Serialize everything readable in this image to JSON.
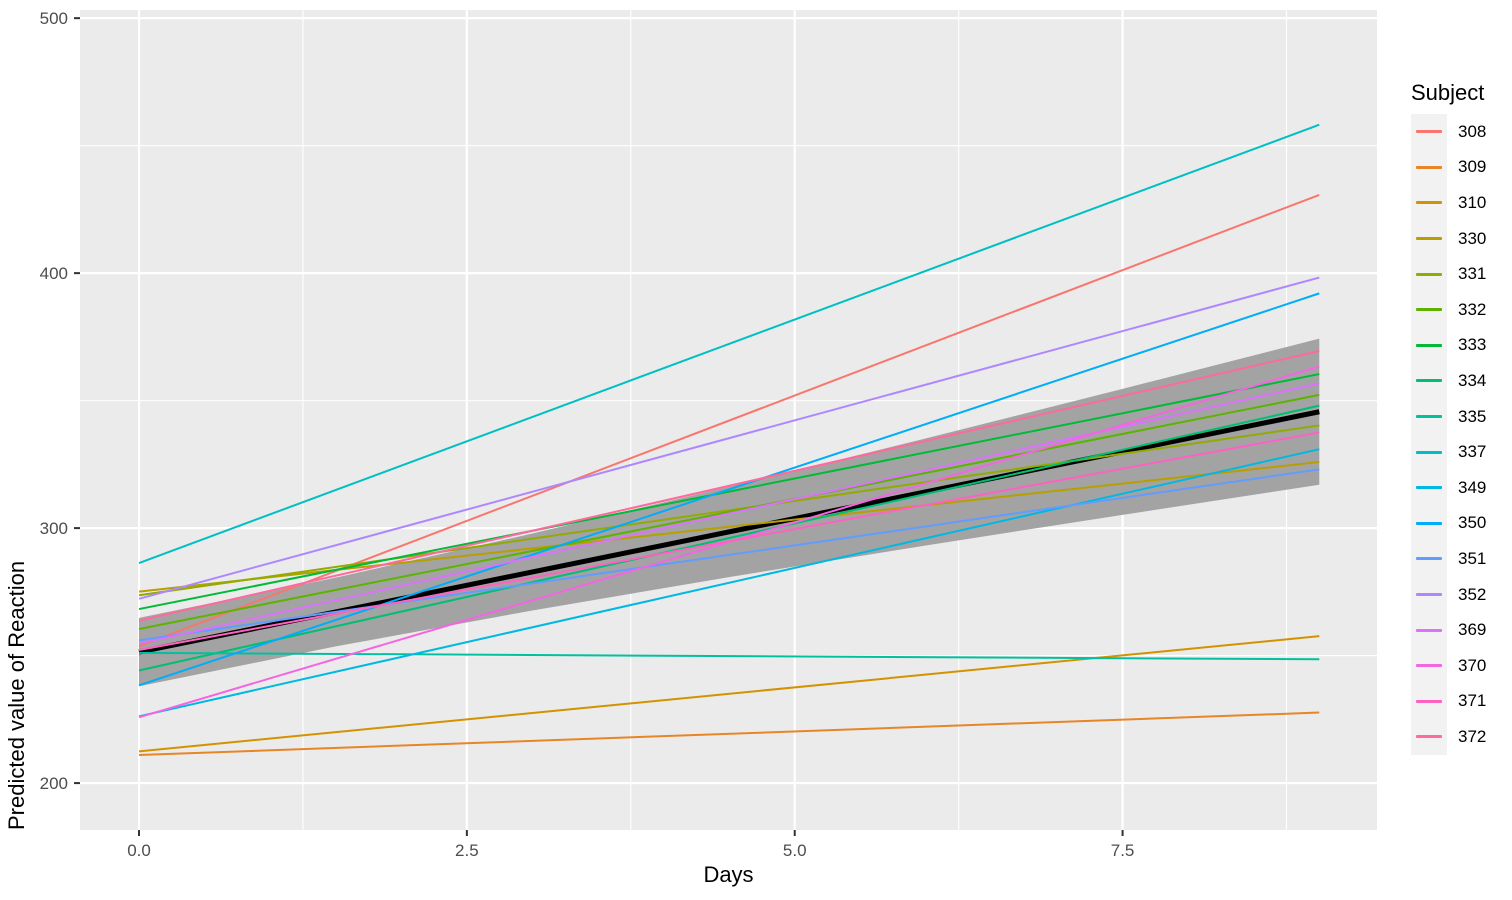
{
  "chart_data": {
    "type": "line",
    "title": "",
    "xlabel": "Days",
    "ylabel": "Predicted value of Reaction",
    "legend_title": "Subject",
    "legend_position": "right",
    "grid": true,
    "xlim": [
      -0.45,
      9.44
    ],
    "ylim": [
      181.6,
      503.2
    ],
    "x_line_range": [
      0,
      9
    ],
    "x_ticks": {
      "major_values": [
        0,
        2.5,
        5,
        7.5
      ],
      "major_labels": [
        "0.0",
        "2.5",
        "5.0",
        "7.5"
      ],
      "minor_values": [
        1.25,
        3.75,
        6.25,
        8.75
      ]
    },
    "y_ticks": {
      "major_values": [
        200,
        300,
        400,
        500
      ],
      "major_labels": [
        "200",
        "300",
        "400",
        "500"
      ],
      "minor_values": [
        250,
        350,
        450
      ]
    },
    "colors": {
      "panel_bg": "#EBEBEB",
      "grid": "#FFFFFF",
      "ribbon": "#A3A3A3",
      "fixed_line": "#000000",
      "axis_text": "#4D4D4D",
      "tick_mark": "#333333",
      "legend_key_bg": "#F2F2F2"
    },
    "fixed_effect": {
      "name": "population-fixed-effect",
      "color": "#000000",
      "intercept": 251.41,
      "slope": 10.47
    },
    "confidence_ribbon": {
      "x": [
        0,
        1.5,
        3,
        4.5,
        6,
        7.5,
        9
      ],
      "lower": [
        238.0,
        253.6,
        267.7,
        280.8,
        293.2,
        305.2,
        317.0
      ],
      "upper": [
        264.8,
        280.6,
        297.9,
        316.2,
        335.2,
        354.6,
        374.3
      ]
    },
    "series": [
      {
        "subject": "308",
        "color": "#F8766D",
        "intercept": 253.66,
        "slope": 19.67
      },
      {
        "subject": "309",
        "color": "#E88526",
        "intercept": 211.01,
        "slope": 1.85
      },
      {
        "subject": "310",
        "color": "#D39200",
        "intercept": 212.44,
        "slope": 5.02
      },
      {
        "subject": "330",
        "color": "#B79F00",
        "intercept": 275.1,
        "slope": 5.65
      },
      {
        "subject": "331",
        "color": "#93AA00",
        "intercept": 273.67,
        "slope": 7.4
      },
      {
        "subject": "332",
        "color": "#5EB300",
        "intercept": 260.44,
        "slope": 10.2
      },
      {
        "subject": "333",
        "color": "#00BA38",
        "intercept": 268.25,
        "slope": 10.24
      },
      {
        "subject": "334",
        "color": "#00BF74",
        "intercept": 244.17,
        "slope": 11.54
      },
      {
        "subject": "335",
        "color": "#00C19F",
        "intercept": 251.07,
        "slope": -0.28
      },
      {
        "subject": "337",
        "color": "#00BFC4",
        "intercept": 286.3,
        "slope": 19.1
      },
      {
        "subject": "349",
        "color": "#00B9E3",
        "intercept": 226.19,
        "slope": 11.64
      },
      {
        "subject": "350",
        "color": "#00ADFA",
        "intercept": 238.34,
        "slope": 17.08
      },
      {
        "subject": "351",
        "color": "#619CFF",
        "intercept": 255.98,
        "slope": 7.45
      },
      {
        "subject": "352",
        "color": "#AE87FF",
        "intercept": 272.27,
        "slope": 14.0
      },
      {
        "subject": "369",
        "color": "#DB72FB",
        "intercept": 254.68,
        "slope": 11.34
      },
      {
        "subject": "370",
        "color": "#F564E3",
        "intercept": 225.79,
        "slope": 15.29
      },
      {
        "subject": "371",
        "color": "#FF61C3",
        "intercept": 252.21,
        "slope": 9.48
      },
      {
        "subject": "372",
        "color": "#FF699C",
        "intercept": 263.72,
        "slope": 11.75
      }
    ]
  }
}
